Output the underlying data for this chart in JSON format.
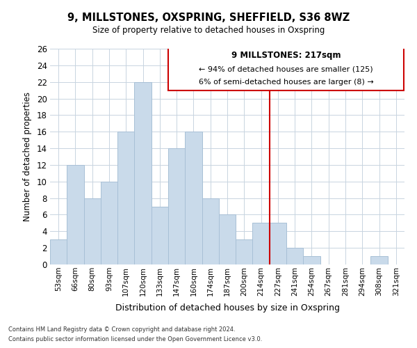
{
  "title": "9, MILLSTONES, OXSPRING, SHEFFIELD, S36 8WZ",
  "subtitle": "Size of property relative to detached houses in Oxspring",
  "xlabel": "Distribution of detached houses by size in Oxspring",
  "ylabel": "Number of detached properties",
  "bin_labels": [
    "53sqm",
    "66sqm",
    "80sqm",
    "93sqm",
    "107sqm",
    "120sqm",
    "133sqm",
    "147sqm",
    "160sqm",
    "174sqm",
    "187sqm",
    "200sqm",
    "214sqm",
    "227sqm",
    "241sqm",
    "254sqm",
    "267sqm",
    "281sqm",
    "294sqm",
    "308sqm",
    "321sqm"
  ],
  "bar_heights": [
    3,
    12,
    8,
    10,
    16,
    22,
    7,
    14,
    16,
    8,
    6,
    3,
    5,
    5,
    2,
    1,
    0,
    0,
    0,
    1,
    0
  ],
  "bar_color": "#c9daea",
  "bar_edge_color": "#a8c0d6",
  "vline_color": "#cc0000",
  "vline_pos": 13.5,
  "annotation_title": "9 MILLSTONES: 217sqm",
  "annotation_line1": "← 94% of detached houses are smaller (125)",
  "annotation_line2": "6% of semi-detached houses are larger (8) →",
  "annotation_box_color": "#cc0000",
  "ylim": [
    0,
    26
  ],
  "yticks": [
    0,
    2,
    4,
    6,
    8,
    10,
    12,
    14,
    16,
    18,
    20,
    22,
    24,
    26
  ],
  "footnote1": "Contains HM Land Registry data © Crown copyright and database right 2024.",
  "footnote2": "Contains public sector information licensed under the Open Government Licence v3.0."
}
